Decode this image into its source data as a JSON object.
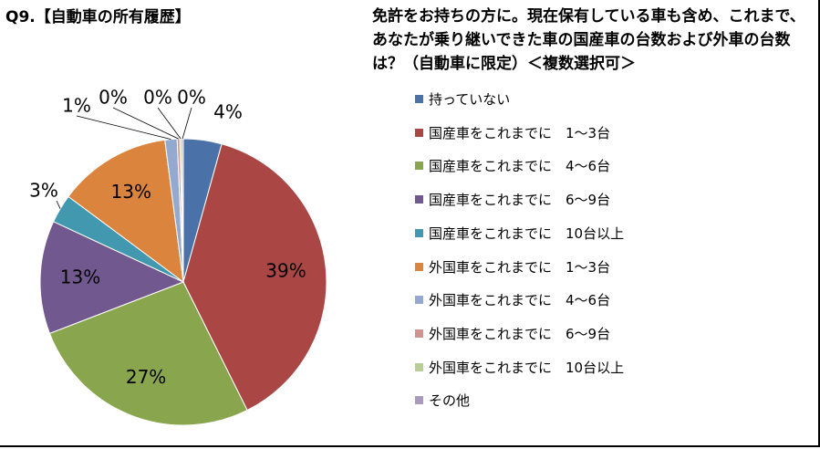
{
  "header": {
    "title": "Q9.【自動車の所有履歴】",
    "question": "免許をお持ちの方に。現在保有している車も含め、これまで、あなたが乗り継いできた車の国産車の台数および外車の台数は？（自動車に限定）＜複数選択可＞"
  },
  "chart_data": {
    "type": "pie",
    "categories": [
      "持っていない",
      "国産車をこれまでに　1～3台",
      "国産車をこれまでに　4～6台",
      "国産車をこれまでに　6～9台",
      "国産車をこれまでに　10台以上",
      "外国車をこれまでに　1～3台",
      "外国車をこれまでに　4～6台",
      "外国車をこれまでに　6～9台",
      "外国車をこれまでに　10台以上",
      "その他"
    ],
    "values": [
      4.4,
      39,
      27,
      13,
      3.3,
      13,
      1.4,
      0.3,
      0.2,
      0.2
    ],
    "labels": [
      "4%",
      "39%",
      "27%",
      "13%",
      "3%",
      "13%",
      "1%",
      "0%",
      "0%",
      "0%"
    ],
    "colors": [
      "#4A72A8",
      "#AA4644",
      "#89A54E",
      "#71588F",
      "#4198AF",
      "#DB843D",
      "#93A9CF",
      "#D19392",
      "#B9CD96",
      "#A99BBD"
    ],
    "legend_position": "right"
  }
}
